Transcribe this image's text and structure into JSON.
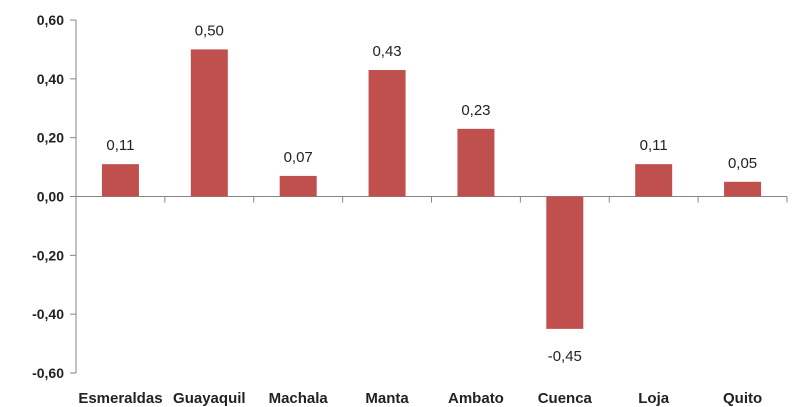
{
  "chart_data": {
    "type": "bar",
    "categories": [
      "Esmeraldas",
      "Guayaquil",
      "Machala",
      "Manta",
      "Ambato",
      "Cuenca",
      "Loja",
      "Quito"
    ],
    "values": [
      0.11,
      0.5,
      0.07,
      0.43,
      0.23,
      -0.45,
      0.11,
      0.05
    ],
    "data_labels": [
      "0,11",
      "0,50",
      "0,07",
      "0,43",
      "0,23",
      "-0,45",
      "0,11",
      "0,05"
    ],
    "ylim": [
      -0.6,
      0.6
    ],
    "yticks": [
      0.6,
      0.4,
      0.2,
      0.0,
      -0.2,
      -0.4,
      -0.6
    ],
    "ytick_labels": [
      "0,60",
      "0,40",
      "0,20",
      "0,00",
      "-0,20",
      "-0,40",
      "-0,60"
    ],
    "bar_color": "#c0504d",
    "axis_color": "#868686",
    "grid": false,
    "legend": "none",
    "title": "",
    "xlabel": "",
    "ylabel": ""
  }
}
